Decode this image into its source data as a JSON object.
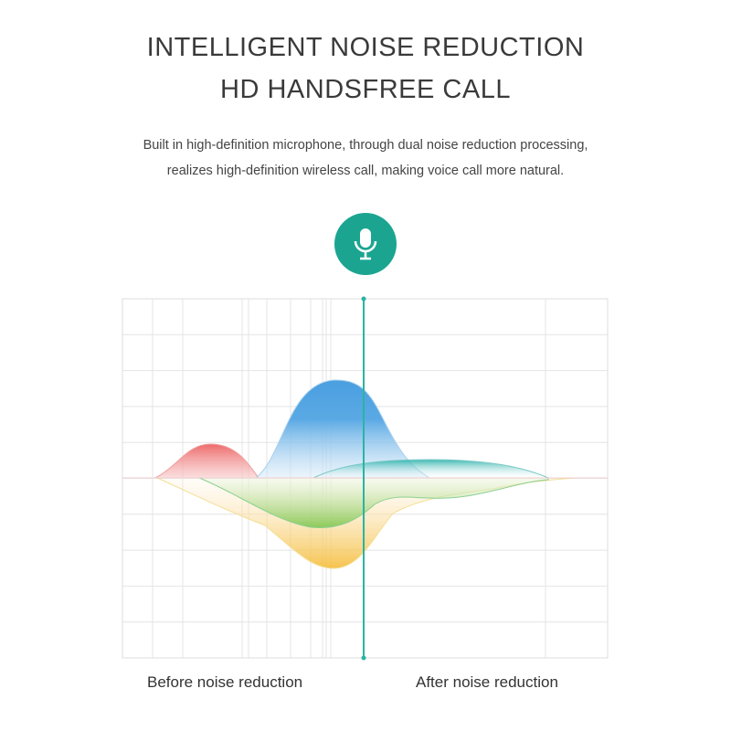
{
  "header": {
    "title_line1": "INTELLIGENT NOISE REDUCTION",
    "title_line2": "HD HANDSFREE CALL",
    "subtitle_line1": "Built in high-definition microphone, through dual noise reduction processing,",
    "subtitle_line2": "realizes high-definition wireless call, making voice call more natural."
  },
  "icon": {
    "name": "microphone-icon",
    "color": "#1ba591"
  },
  "diagram": {
    "label_before": "Before noise reduction",
    "label_after": "After noise reduction",
    "divider_color": "#2bb3a3",
    "wave_colors": {
      "red": "#ee6a6a",
      "blue": "#4a9fe0",
      "teal": "#2ab0ab",
      "green": "#8cca5a",
      "yellow": "#f5bd3a"
    }
  }
}
